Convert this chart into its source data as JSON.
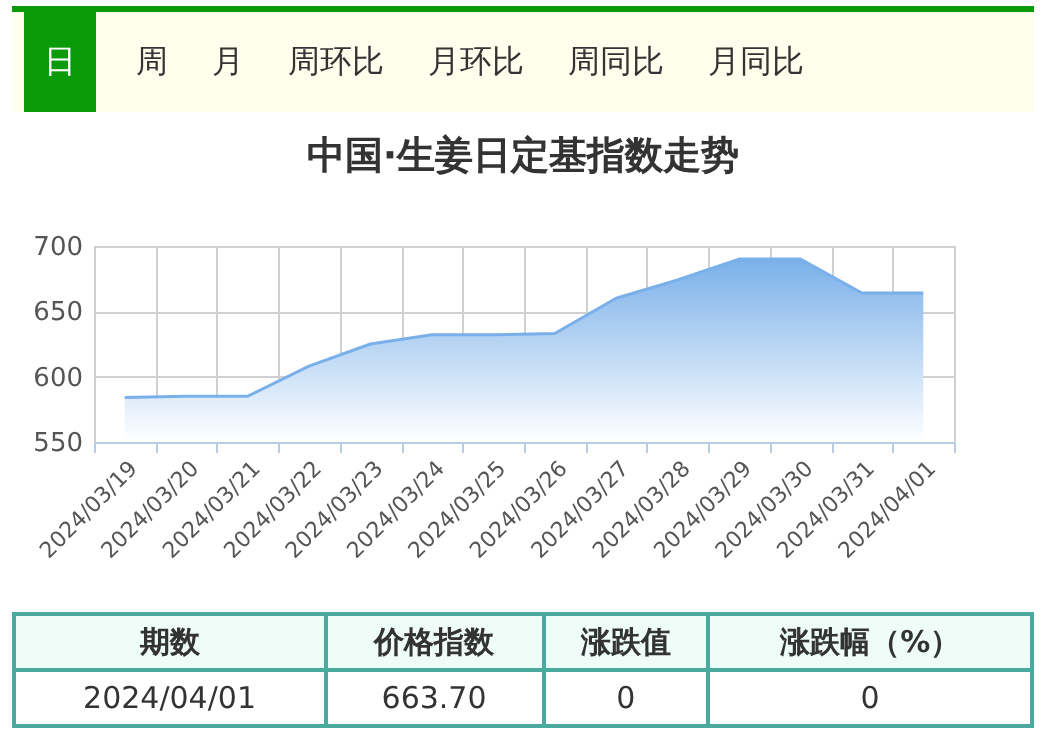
{
  "chart_data": {
    "type": "area",
    "title": "中国·生姜日定基指数走势",
    "categories": [
      "2024/03/19",
      "2024/03/20",
      "2024/03/21",
      "2024/03/22",
      "2024/03/23",
      "2024/03/24",
      "2024/03/25",
      "2024/03/26",
      "2024/03/27",
      "2024/03/28",
      "2024/03/29",
      "2024/03/30",
      "2024/03/31",
      "2024/04/01"
    ],
    "values": [
      584,
      585,
      585,
      608,
      625,
      632,
      632,
      633,
      660,
      674,
      690,
      690,
      664,
      664
    ],
    "color": "#7ab0ea",
    "ylim": [
      550,
      700
    ],
    "yticks": [
      550,
      600,
      650,
      700
    ],
    "grid": true,
    "annotations": [
      "日",
      "周",
      "月",
      "周环比",
      "月环比",
      "周同比",
      "月同比",
      "期数",
      "价格指数",
      "涨跌值",
      "涨跌幅（%）",
      "2024/04/01",
      "663.70",
      "0",
      "0"
    ]
  }
}
